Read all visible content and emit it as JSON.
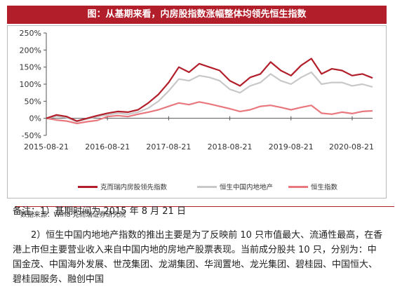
{
  "header": {
    "title": "图：从基期来看，内房股指数涨幅整体均领先恒生指数"
  },
  "chart_data": {
    "type": "line",
    "x_labels": [
      "2015-08-21",
      "2016-08-21",
      "2017-08-21",
      "2018-08-21",
      "2019-08-21",
      "2020-08-21"
    ],
    "x_tick_dates": [
      "2015-08",
      "2016-08",
      "2017-08",
      "2018-08",
      "2019-08",
      "2020-08"
    ],
    "ylim": [
      -50,
      250
    ],
    "y_ticks": [
      -50,
      0,
      50,
      100,
      150,
      200,
      250
    ],
    "y_tick_labels": [
      "-50%",
      "0%",
      "50%",
      "100%",
      "150%",
      "200%",
      "250%"
    ],
    "y_unit": "%",
    "grid": false,
    "legend_position": "bottom",
    "x": [
      "2015-08",
      "2015-10",
      "2015-12",
      "2016-02",
      "2016-04",
      "2016-06",
      "2016-08",
      "2016-10",
      "2016-12",
      "2017-02",
      "2017-04",
      "2017-06",
      "2017-08",
      "2017-10",
      "2017-12",
      "2018-02",
      "2018-04",
      "2018-06",
      "2018-08",
      "2018-10",
      "2018-12",
      "2019-02",
      "2019-04",
      "2019-06",
      "2019-08",
      "2019-10",
      "2019-12",
      "2020-02",
      "2020-04",
      "2020-06",
      "2020-08",
      "2020-10",
      "2020-12"
    ],
    "series": [
      {
        "name": "克而瑞内房股领先指数",
        "color": "#b21e2a",
        "values": [
          0,
          10,
          5,
          -8,
          0,
          8,
          15,
          20,
          18,
          25,
          45,
          70,
          105,
          150,
          135,
          160,
          150,
          140,
          110,
          95,
          120,
          130,
          165,
          140,
          125,
          155,
          175,
          130,
          145,
          140,
          125,
          130,
          118
        ]
      },
      {
        "name": "恒生中国内地地产",
        "color": "#c8c8c8",
        "values": [
          0,
          6,
          2,
          -10,
          -2,
          5,
          10,
          15,
          12,
          18,
          30,
          50,
          80,
          115,
          110,
          125,
          120,
          110,
          85,
          75,
          95,
          105,
          130,
          110,
          100,
          120,
          135,
          100,
          105,
          105,
          95,
          100,
          92
        ]
      },
      {
        "name": "恒生指数",
        "color": "#e8787e",
        "values": [
          0,
          -5,
          -8,
          -15,
          -10,
          -6,
          5,
          8,
          5,
          12,
          18,
          25,
          35,
          45,
          40,
          48,
          42,
          35,
          28,
          20,
          25,
          35,
          38,
          32,
          25,
          32,
          38,
          15,
          12,
          18,
          14,
          20,
          22
        ]
      }
    ]
  },
  "source": {
    "label": "数据来源：Wind 克而瑞证券研究院"
  },
  "note": {
    "text": "备注：1）基期时间为 2015 年 8 月 21 日"
  },
  "paragraph": {
    "text": "2）恒生中国内地地产指数的推出主要是为了反映前 10 只市值最大、流通性最高，在香港上市但主要营业收入来自中国内地的房地产股票表现。当前成分股共 10 只，分别为：中国金茂、中国海外发展、世茂集团、龙湖集团、华润置地、龙光集团、碧桂园、中国恒大、碧桂园服务、融创中国"
  }
}
